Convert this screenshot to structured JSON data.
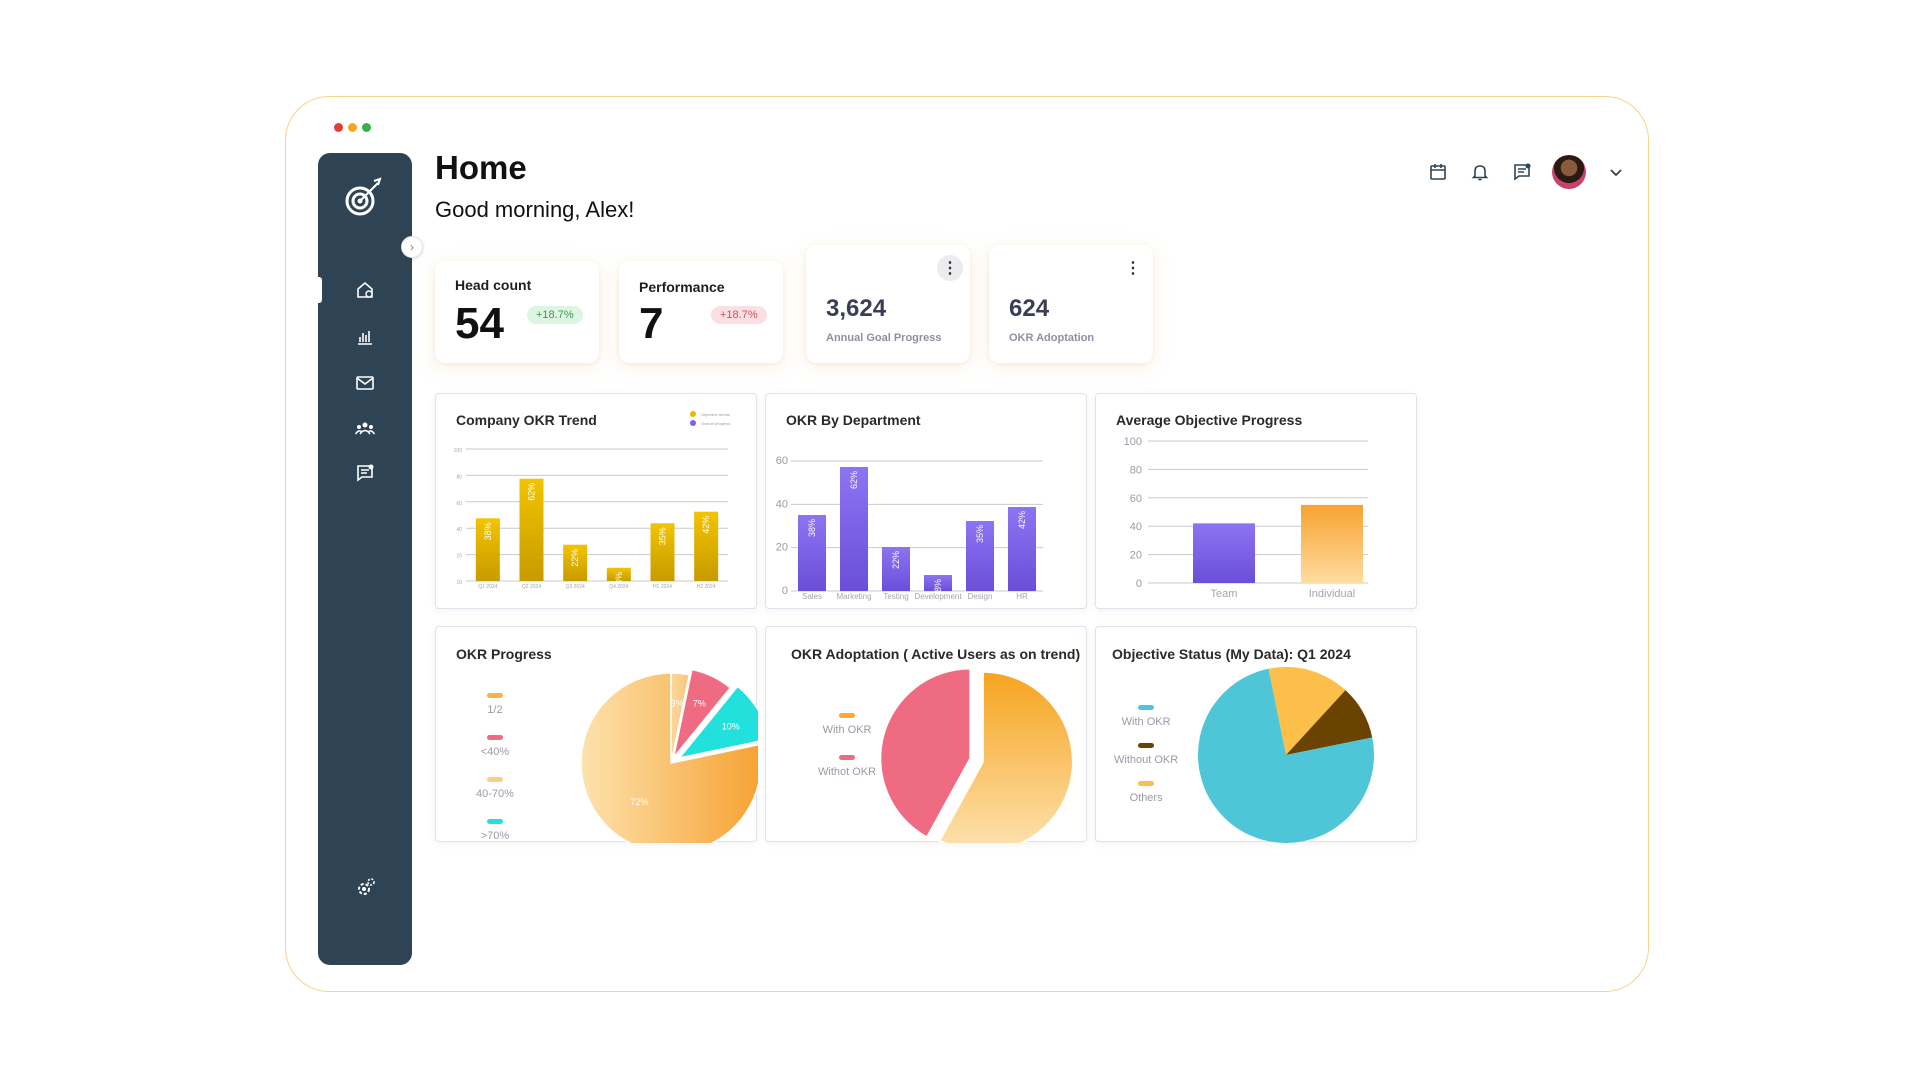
{
  "window": {
    "dots": [
      "#e63b2e",
      "#f5a623",
      "#2fb34a"
    ]
  },
  "header": {
    "title": "Home",
    "greeting": "Good morning, Alex!"
  },
  "sidebar": {
    "logo_icon": "target-arrow-icon",
    "items": [
      {
        "name": "home",
        "icon": "home-icon",
        "active": true
      },
      {
        "name": "analytics",
        "icon": "bar-chart-icon"
      },
      {
        "name": "mail",
        "icon": "mail-icon"
      },
      {
        "name": "team",
        "icon": "team-icon"
      },
      {
        "name": "messages",
        "icon": "chat-icon"
      }
    ],
    "footer_icon": "settings-icon"
  },
  "topbar": {
    "icons": [
      "calendar-icon",
      "bell-icon",
      "chat-icon",
      "avatar",
      "chevron-down-icon"
    ]
  },
  "stats": {
    "headcount": {
      "label": "Head count",
      "value": "54",
      "badge": "+18.7%"
    },
    "performance": {
      "label": "Performance",
      "value": "7",
      "badge": "+18.7%"
    },
    "annual": {
      "value": "3,624",
      "label": "Annual Goal Progress"
    },
    "adoption": {
      "value": "624",
      "label": "OKR Adoptation"
    }
  },
  "colors": {
    "accent_yellow": "#e8b800",
    "accent_purple": "#7b61e8",
    "accent_orange": "#f8a93a",
    "accent_pink": "#ef6b82",
    "accent_teal": "#4ec6d8",
    "accent_cyan": "#22e0dc",
    "accent_brown": "#6b4300"
  },
  "panels": {
    "trend": {
      "title": "Company OKR Trend",
      "legend": [
        "Objective trends",
        "Overall progress"
      ]
    },
    "dept": {
      "title": "OKR By Department"
    },
    "avg": {
      "title": "Average Objective Progress"
    },
    "progress": {
      "title": "OKR Progress",
      "legend": [
        "1/2",
        "<40%",
        "40-70%",
        ">70%"
      ]
    },
    "adopt": {
      "title": "OKR Adoptation ( Active Users as on trend)",
      "legend": [
        "With OKR",
        "Withot OKR"
      ]
    },
    "status": {
      "title": "Objective Status (My Data): Q1 2024",
      "legend": [
        "With OKR",
        "Without OKR",
        "Others"
      ]
    }
  },
  "chart_data": [
    {
      "type": "bar",
      "title": "Company OKR Trend",
      "categories": [
        "Q1 2024",
        "Q2 2024",
        "Q3 2024",
        "Q4 2024",
        "H1 2024",
        "H2 2024"
      ],
      "values": [
        38,
        62,
        22,
        8,
        35,
        42
      ],
      "value_labels": [
        "38%",
        "62%",
        "22%",
        "8%",
        "35%",
        "42%"
      ],
      "y_ticks": [
        "100",
        "80",
        "60",
        "40",
        "20",
        "10"
      ],
      "legend": [
        "Objective trends",
        "Overall progress"
      ],
      "legend_colors": [
        "#e8b800",
        "#7b61e8"
      ],
      "color": "#e8b800"
    },
    {
      "type": "bar",
      "title": "OKR By Department",
      "categories": [
        "Sales",
        "Marketing",
        "Testing",
        "Development",
        "Design",
        "HR"
      ],
      "values": [
        38,
        62,
        22,
        8,
        35,
        42
      ],
      "value_labels": [
        "38%",
        "62%",
        "22%",
        "8%",
        "35%",
        "42%"
      ],
      "y_ticks": [
        "60",
        "40",
        "20",
        "0"
      ],
      "ylim": [
        0,
        65
      ],
      "color": "#7b61e8"
    },
    {
      "type": "bar",
      "title": "Average Objective Progress",
      "categories": [
        "Team",
        "Individual"
      ],
      "values": [
        42,
        55
      ],
      "y_ticks": [
        "100",
        "80",
        "60",
        "40",
        "20",
        "0"
      ],
      "ylim": [
        0,
        100
      ],
      "colors": [
        "#7b61e8",
        "#f8a93a"
      ]
    },
    {
      "type": "pie",
      "title": "OKR Progress",
      "labels": [
        "1/2",
        "<40%",
        "40-70%",
        ">70%"
      ],
      "values": [
        3,
        7,
        10,
        72
      ],
      "slice_labels": [
        "3%",
        "7%",
        "10%",
        "72%"
      ],
      "colors": [
        "#f9cf8c",
        "#ef6b82",
        "#22e0dc",
        "#f8b14a"
      ]
    },
    {
      "type": "pie",
      "title": "OKR Adoptation ( Active Users as on trend)",
      "labels": [
        "With OKR",
        "Withot OKR"
      ],
      "values": [
        58,
        42
      ],
      "colors": [
        "#f8a93a",
        "#ef6b82"
      ]
    },
    {
      "type": "pie",
      "title": "Objective Status (My Data): Q1 2024",
      "labels": [
        "With OKR",
        "Without OKR",
        "Others"
      ],
      "values": [
        75,
        10,
        15
      ],
      "colors": [
        "#4ec6d8",
        "#6b4300",
        "#fbbf4a"
      ]
    }
  ]
}
